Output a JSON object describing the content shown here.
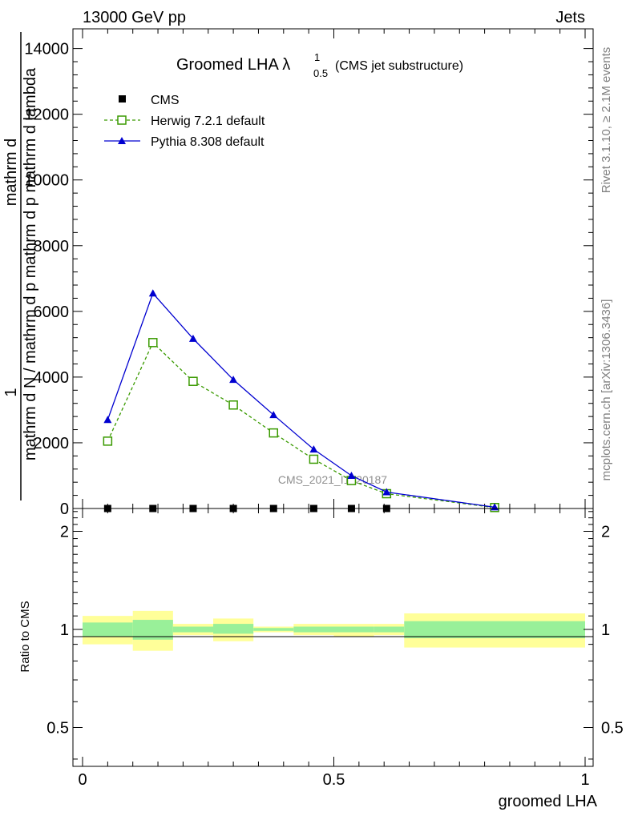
{
  "header": {
    "energy": "13000 GeV pp",
    "process": "Jets",
    "rivet": "Rivet 3.1.10, ≥ 2.1M events",
    "source": "mcplots.cern.ch [arXiv:1306.3436]",
    "watermark": "CMS_2021_I1920187"
  },
  "chart_data": [
    {
      "type": "line",
      "title": "Groomed LHA",
      "title_sub": "0.5",
      "title_sup": "1",
      "title_note": "(CMS jet substructure)",
      "ylabel_top": "mathrm dN / mathrm d p",
      "ylabel_top_frac_num": "1",
      "ylabel_top_frac_den": "mathrm d N / mathrm d p mathrm d p mathrm d lambda",
      "ylabel_lines": [
        "mathrm d",
        "mathrm d N",
        "mathrm d p",
        "mathrm d lambda"
      ],
      "ylim": [
        0,
        14600
      ],
      "xlim": [
        0,
        1
      ],
      "yticks": [
        0,
        2000,
        4000,
        6000,
        8000,
        10000,
        12000,
        14000
      ],
      "yticklabels": [
        "0",
        "2000",
        "4000",
        "6000",
        "8000",
        "10000",
        "12000",
        "14000"
      ],
      "legend_position": "top-left",
      "series": [
        {
          "name": "CMS",
          "marker": "square",
          "color": "#000000",
          "x": [
            0.05,
            0.14,
            0.22,
            0.3,
            0.38,
            0.46,
            0.535,
            0.605,
            0.82
          ],
          "y": [
            0,
            0,
            0,
            0,
            0,
            0,
            0,
            0,
            0
          ]
        },
        {
          "name": "Herwig 7.2.1 default",
          "marker": "open-square",
          "color": "#3a9a00",
          "dash": true,
          "x": [
            0.05,
            0.14,
            0.22,
            0.3,
            0.38,
            0.46,
            0.535,
            0.605,
            0.82
          ],
          "y": [
            2050,
            5050,
            3870,
            3150,
            2300,
            1500,
            850,
            450,
            30
          ]
        },
        {
          "name": "Pythia 8.308 default",
          "marker": "triangle",
          "color": "#0000d0",
          "dash": false,
          "x": [
            0.05,
            0.14,
            0.22,
            0.3,
            0.38,
            0.46,
            0.535,
            0.605,
            0.82
          ],
          "y": [
            2700,
            6550,
            5170,
            3920,
            2850,
            1800,
            1000,
            500,
            40
          ]
        }
      ]
    },
    {
      "type": "area",
      "ylabel": "Ratio to CMS",
      "xlabel": "groomed LHA",
      "xlim": [
        0,
        1
      ],
      "ylim": [
        0.38,
        2.35
      ],
      "log_y": true,
      "yticks": [
        0.5,
        1,
        2
      ],
      "yticklabels": [
        "0.5",
        "1",
        "2"
      ],
      "xticks": [
        0,
        0.5,
        1
      ],
      "xticklabels": [
        "0",
        "0.5",
        "1"
      ],
      "bins": [
        {
          "lo": 0.0,
          "hi": 0.1,
          "stat": [
            0.95,
            1.05
          ],
          "total": [
            0.9,
            1.1
          ]
        },
        {
          "lo": 0.1,
          "hi": 0.18,
          "stat": [
            0.93,
            1.07
          ],
          "total": [
            0.86,
            1.14
          ]
        },
        {
          "lo": 0.18,
          "hi": 0.26,
          "stat": [
            0.98,
            1.02
          ],
          "total": [
            0.96,
            1.04
          ]
        },
        {
          "lo": 0.26,
          "hi": 0.34,
          "stat": [
            0.97,
            1.04
          ],
          "total": [
            0.92,
            1.08
          ]
        },
        {
          "lo": 0.34,
          "hi": 0.42,
          "stat": [
            0.99,
            1.01
          ],
          "total": [
            0.98,
            1.02
          ]
        },
        {
          "lo": 0.42,
          "hi": 0.5,
          "stat": [
            0.98,
            1.02
          ],
          "total": [
            0.96,
            1.04
          ]
        },
        {
          "lo": 0.5,
          "hi": 0.58,
          "stat": [
            0.98,
            1.02
          ],
          "total": [
            0.95,
            1.04
          ]
        },
        {
          "lo": 0.58,
          "hi": 0.64,
          "stat": [
            0.98,
            1.02
          ],
          "total": [
            0.96,
            1.04
          ]
        },
        {
          "lo": 0.64,
          "hi": 1.0,
          "stat": [
            0.94,
            1.06
          ],
          "total": [
            0.88,
            1.12
          ]
        }
      ],
      "colors": {
        "stat": "#99f099",
        "total": "#ffff99"
      }
    }
  ]
}
